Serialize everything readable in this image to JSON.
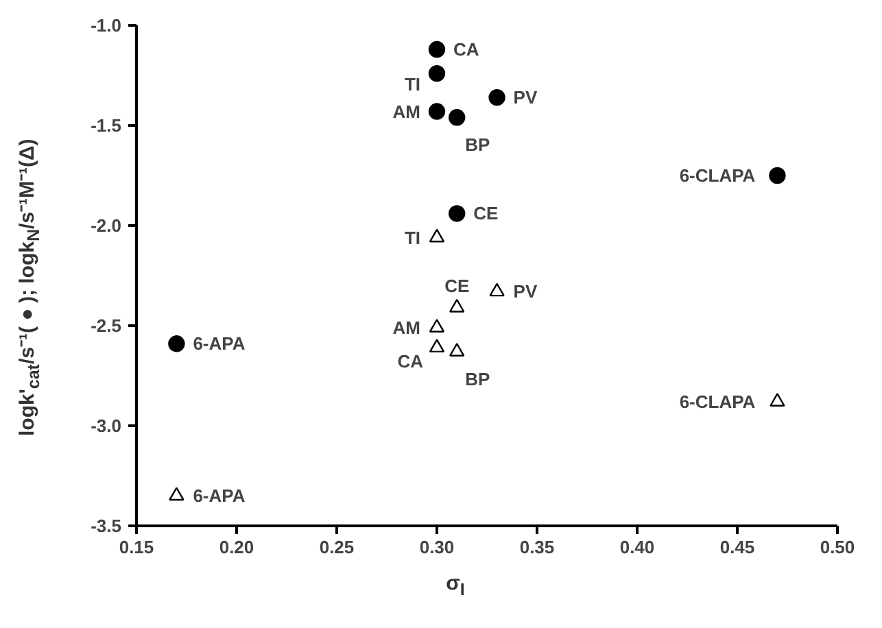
{
  "chart_data": {
    "type": "scatter",
    "xlabel": "σ$_{I}$",
    "ylabel": "logk'$_{cat}$/s⁻¹(●); logk$_{N}$/s⁻¹M⁻¹(Δ)",
    "xlim": [
      0.15,
      0.5
    ],
    "xticks": [
      {
        "value": 0.15,
        "label": "0.15"
      },
      {
        "value": 0.2,
        "label": "0.20"
      },
      {
        "value": 0.25,
        "label": "0.25"
      },
      {
        "value": 0.3,
        "label": "0.30"
      },
      {
        "value": 0.35,
        "label": "0.35"
      },
      {
        "value": 0.4,
        "label": "0.40"
      },
      {
        "value": 0.45,
        "label": "0.45"
      },
      {
        "value": 0.5,
        "label": "0.50"
      }
    ],
    "ylim": [
      -3.5,
      -1.0
    ],
    "yticks": [
      {
        "value": -3.5,
        "label": "-3.5"
      },
      {
        "value": -3.0,
        "label": "-3.0"
      },
      {
        "value": -2.5,
        "label": "-2.5"
      },
      {
        "value": -2.0,
        "label": "-2.0"
      },
      {
        "value": -1.5,
        "label": "-1.5"
      },
      {
        "value": -1.0,
        "label": "-1.0"
      }
    ],
    "grid": false,
    "series": [
      {
        "color": "#000000",
        "marker": "circle",
        "x": [
          0.3,
          0.3,
          0.33,
          0.3,
          0.31,
          0.47,
          0.31,
          0.17
        ],
        "values": [
          -1.12,
          -1.24,
          -1.36,
          -1.43,
          -1.46,
          -1.75,
          -1.94,
          -2.59
        ]
      },
      {
        "color": "#000000",
        "marker": "triangle",
        "x": [
          0.3,
          0.33,
          0.31,
          0.3,
          0.3,
          0.31,
          0.47,
          0.17
        ],
        "values": [
          -2.06,
          -2.33,
          -2.41,
          -2.51,
          -2.61,
          -2.63,
          -2.88,
          -3.35
        ]
      }
    ],
    "annotations": [
      {
        "text": "CA",
        "x": 0.3,
        "y": -1.12
      },
      {
        "text": "TI",
        "x": 0.3,
        "y": -1.24
      },
      {
        "text": "PV",
        "x": 0.33,
        "y": -1.36
      },
      {
        "text": "AM",
        "x": 0.3,
        "y": -1.43
      },
      {
        "text": "BP",
        "x": 0.31,
        "y": -1.46
      },
      {
        "text": "6-CLAPA",
        "x": 0.47,
        "y": -1.75
      },
      {
        "text": "CE",
        "x": 0.31,
        "y": -1.94
      },
      {
        "text": "6-APA",
        "x": 0.17,
        "y": -2.59
      },
      {
        "text": "TI",
        "x": 0.3,
        "y": -2.06
      },
      {
        "text": "PV",
        "x": 0.33,
        "y": -2.33
      },
      {
        "text": "CE",
        "x": 0.31,
        "y": -2.41
      },
      {
        "text": "AM",
        "x": 0.3,
        "y": -2.51
      },
      {
        "text": "CA",
        "x": 0.3,
        "y": -2.61
      },
      {
        "text": "BP",
        "x": 0.31,
        "y": -2.63
      },
      {
        "text": "6-CLAPA",
        "x": 0.47,
        "y": -2.88
      },
      {
        "text": "6-APA",
        "x": 0.17,
        "y": -3.35
      }
    ]
  }
}
